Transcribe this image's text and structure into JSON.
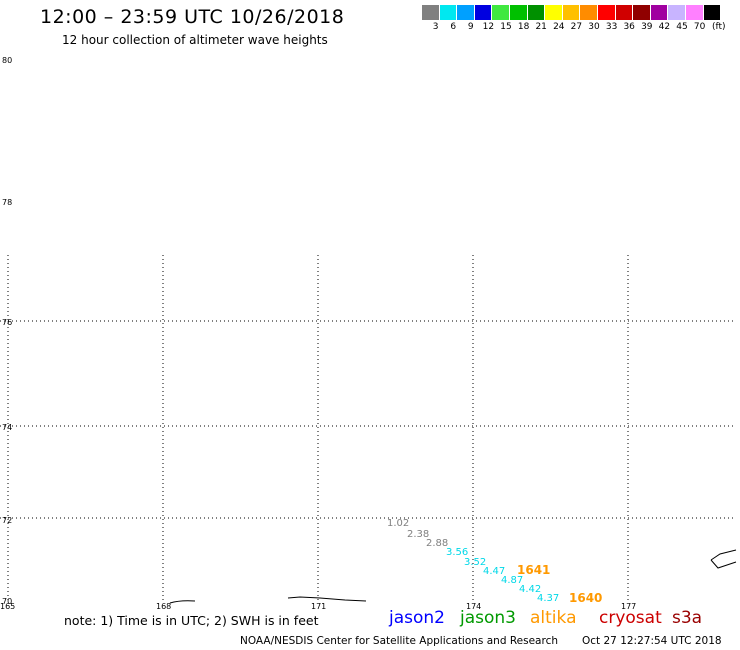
{
  "header": {
    "title": "12:00 – 23:59 UTC 10/26/2018",
    "subtitle": "12 hour collection of altimeter wave heights"
  },
  "colorbar": {
    "unit": "(ft)",
    "entries": [
      {
        "label": "3",
        "color": "#808080"
      },
      {
        "label": "6",
        "color": "#00e8f0"
      },
      {
        "label": "9",
        "color": "#00a0ff"
      },
      {
        "label": "12",
        "color": "#0000e0"
      },
      {
        "label": "15",
        "color": "#40e840"
      },
      {
        "label": "18",
        "color": "#00c000"
      },
      {
        "label": "21",
        "color": "#009000"
      },
      {
        "label": "24",
        "color": "#ffff00"
      },
      {
        "label": "27",
        "color": "#ffc000"
      },
      {
        "label": "30",
        "color": "#ff8c00"
      },
      {
        "label": "33",
        "color": "#ff0000"
      },
      {
        "label": "36",
        "color": "#d00000"
      },
      {
        "label": "39",
        "color": "#900000"
      },
      {
        "label": "42",
        "color": "#a000a0"
      },
      {
        "label": "45",
        "color": "#c8b4ff"
      },
      {
        "label": "70",
        "color": "#ff80ff"
      },
      {
        "label": "",
        "color": "#000000"
      }
    ]
  },
  "axes": {
    "lat_labels": [
      "80",
      "78",
      "76",
      "74",
      "72",
      "70"
    ],
    "lon_labels": [
      "165",
      "168",
      "171",
      "174",
      "177"
    ]
  },
  "observations": [
    {
      "value": "1.02",
      "color": "#808080"
    },
    {
      "value": "2.38",
      "color": "#808080"
    },
    {
      "value": "2.88",
      "color": "#808080"
    },
    {
      "value": "3.56",
      "color": "#00d8e8"
    },
    {
      "value": "3.52",
      "color": "#00d8e8"
    },
    {
      "value": "4.47",
      "color": "#00d8e8"
    },
    {
      "value": "4.87",
      "color": "#00d8e8"
    },
    {
      "value": "4.42",
      "color": "#00d8e8"
    },
    {
      "value": "4.37",
      "color": "#00d8e8"
    }
  ],
  "passes": [
    {
      "time": "1641",
      "color": "#ff9900"
    },
    {
      "time": "1640",
      "color": "#ff9900"
    }
  ],
  "legend": {
    "note": "note: 1) Time is in UTC; 2) SWH is in feet",
    "satellites": [
      {
        "name": "jason2",
        "color": "#0000ff"
      },
      {
        "name": "jason3",
        "color": "#009900"
      },
      {
        "name": "altika",
        "color": "#ff9900"
      },
      {
        "name": "cryosat",
        "color": "#cc0000"
      },
      {
        "name": "s3a",
        "color": "#990000"
      }
    ]
  },
  "footer": {
    "credit": "NOAA/NESDIS Center for Satellite Applications and Research",
    "timestamp": "Oct 27 12:27:54 UTC 2018"
  }
}
